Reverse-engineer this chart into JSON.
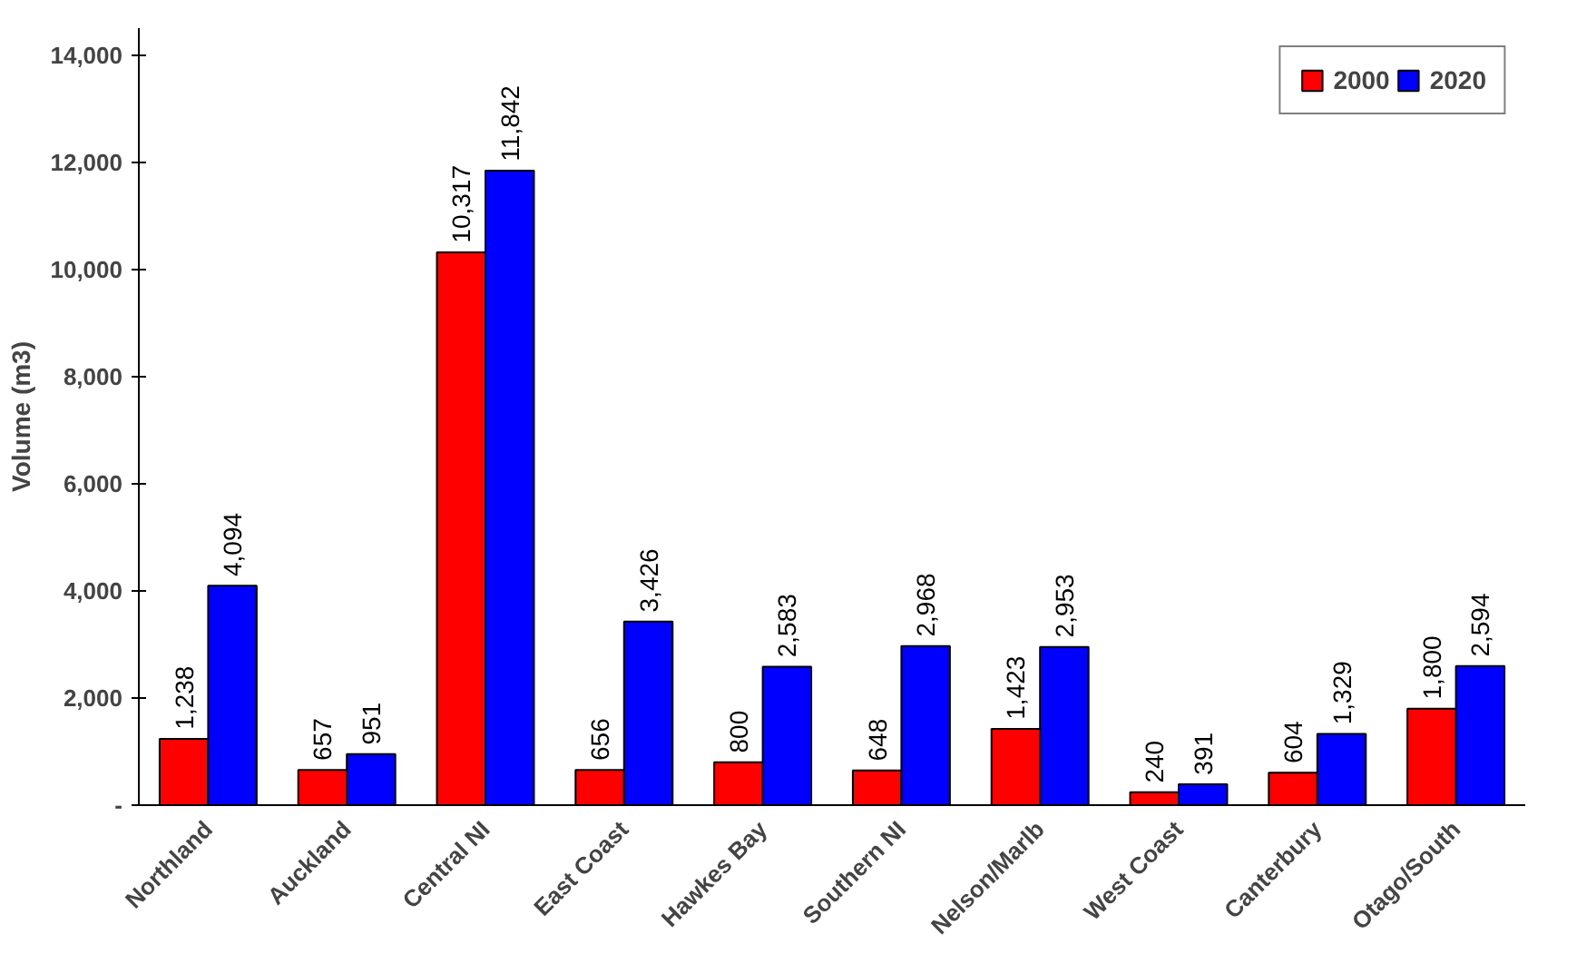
{
  "chart_data": {
    "type": "bar",
    "ylabel": "Volume (m3)",
    "categories": [
      "Northland",
      "Auckland",
      "Central NI",
      "East Coast",
      "Hawkes Bay",
      "Southern NI",
      "Nelson/Marlb",
      "West Coast",
      "Canterbury",
      "Otago/South"
    ],
    "series": [
      {
        "name": "2000",
        "color": "#ff0000",
        "values": [
          1238,
          657,
          10317,
          656,
          800,
          648,
          1423,
          240,
          604,
          1800
        ],
        "value_labels": [
          "1,238",
          "657",
          "10,317",
          "656",
          "800",
          "648",
          "1,423",
          "240",
          "604",
          "1,800"
        ]
      },
      {
        "name": "2020",
        "color": "#0000ff",
        "values": [
          4094,
          951,
          11842,
          3426,
          2583,
          2968,
          2953,
          391,
          1329,
          2594
        ],
        "value_labels": [
          "4,094",
          "951",
          "11,842",
          "3,426",
          "2,583",
          "2,968",
          "2,953",
          "391",
          "1,329",
          "2,594"
        ]
      }
    ],
    "ylim": [
      0,
      14500
    ],
    "yticks": [
      {
        "value": 0,
        "label": "-"
      },
      {
        "value": 2000,
        "label": "2,000"
      },
      {
        "value": 4000,
        "label": "4,000"
      },
      {
        "value": 6000,
        "label": "6,000"
      },
      {
        "value": 8000,
        "label": "8,000"
      },
      {
        "value": 10000,
        "label": "10,000"
      },
      {
        "value": 12000,
        "label": "12,000"
      },
      {
        "value": 14000,
        "label": "14,000"
      }
    ],
    "grid": false,
    "legend": "top right"
  }
}
